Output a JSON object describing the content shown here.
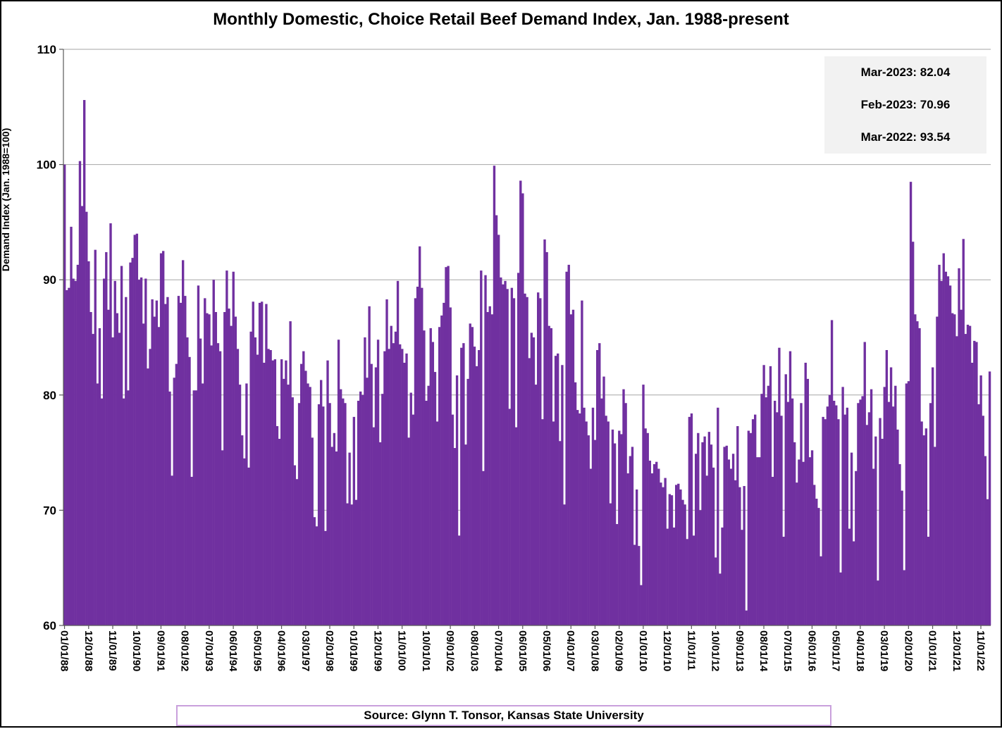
{
  "title": "Monthly Domestic, Choice Retail Beef Demand Index, Jan. 1988-present",
  "y_axis": {
    "label": "Demand Index (Jan. 1988=100)",
    "ticks": [
      110,
      100,
      90,
      80,
      70,
      60
    ],
    "min": 60,
    "max": 110
  },
  "x_axis": {
    "tick_interval_months": 11,
    "tick_labels": [
      "01/01/88",
      "12/01/88",
      "11/01/89",
      "10/01/90",
      "09/01/91",
      "08/01/92",
      "07/01/93",
      "06/01/94",
      "05/01/95",
      "04/01/96",
      "03/01/97",
      "02/01/98",
      "01/01/99",
      "12/01/99",
      "11/01/00",
      "10/01/01",
      "09/01/02",
      "08/01/03",
      "07/01/04",
      "06/01/05",
      "05/01/06",
      "04/01/07",
      "03/01/08",
      "02/01/09",
      "01/01/10",
      "12/01/10",
      "11/01/11",
      "10/01/12",
      "09/01/13",
      "08/01/14",
      "07/01/15",
      "06/01/16",
      "05/01/17",
      "04/01/18",
      "03/01/19",
      "02/01/20",
      "01/01/21",
      "12/01/21",
      "11/01/22"
    ]
  },
  "annotation": {
    "lines": [
      "Mar-2023: 82.04",
      "Feb-2023: 70.96",
      "Mar-2022: 93.54"
    ]
  },
  "source": {
    "text": "Source: Glynn T. Tonsor, Kansas State University"
  },
  "colors": {
    "bar": "#7030A0",
    "gridline": "#A6A6A6",
    "axis": "#595959",
    "annotation_bg": "#F2F2F2",
    "source_border": "#C9A0DC"
  },
  "chart_data": {
    "type": "bar",
    "series_name": "Choice Retail Beef Demand Index",
    "x_start": "1988-01",
    "x_end": "2023-03",
    "x_interval": "month",
    "ylim": [
      60,
      110
    ],
    "grid": true,
    "annotated_points": {
      "Mar-2023": 82.04,
      "Feb-2023": 70.96,
      "Mar-2022": 93.54
    },
    "values": [
      100.0,
      89.1,
      89.3,
      94.6,
      90.1,
      89.9,
      91.3,
      100.3,
      96.4,
      105.6,
      95.9,
      91.6,
      87.2,
      85.3,
      92.6,
      81.0,
      85.8,
      79.7,
      90.1,
      92.4,
      87.4,
      94.9,
      85.0,
      89.9,
      87.1,
      85.4,
      91.2,
      79.7,
      88.5,
      80.4,
      91.5,
      91.9,
      93.9,
      94.0,
      90.0,
      90.2,
      86.2,
      90.1,
      82.3,
      84.0,
      88.3,
      86.8,
      88.2,
      85.9,
      92.3,
      92.5,
      87.9,
      88.5,
      80.3,
      73.0,
      81.5,
      82.7,
      88.6,
      88.0,
      91.7,
      88.6,
      85.0,
      83.3,
      72.9,
      80.4,
      80.4,
      89.5,
      84.9,
      81.0,
      88.4,
      87.1,
      87.0,
      84.3,
      90.0,
      87.2,
      84.5,
      83.8,
      75.2,
      87.2,
      90.8,
      87.5,
      86.0,
      90.7,
      86.8,
      84.0,
      80.9,
      76.5,
      74.5,
      81.0,
      73.7,
      85.5,
      88.1,
      85.0,
      83.5,
      88.0,
      88.1,
      82.8,
      87.9,
      84.0,
      83.9,
      83.0,
      83.1,
      77.3,
      76.2,
      83.1,
      81.4,
      83.0,
      80.9,
      86.4,
      79.8,
      73.9,
      72.7,
      79.3,
      82.7,
      83.8,
      82.1,
      81.0,
      80.7,
      76.3,
      69.4,
      68.6,
      79.2,
      81.3,
      79.0,
      68.2,
      83.0,
      79.3,
      75.5,
      76.7,
      75.1,
      84.8,
      80.5,
      79.7,
      79.3,
      70.6,
      75.0,
      70.5,
      78.1,
      70.9,
      79.5,
      80.3,
      80.0,
      85.0,
      81.5,
      87.7,
      82.7,
      77.2,
      82.4,
      84.8,
      75.9,
      80.1,
      83.8,
      88.3,
      84.0,
      86.0,
      84.5,
      85.5,
      89.9,
      84.4,
      84.0,
      82.8,
      83.6,
      76.3,
      80.2,
      78.3,
      88.4,
      89.4,
      92.9,
      89.3,
      85.6,
      79.5,
      80.8,
      85.8,
      84.6,
      82.0,
      77.7,
      85.9,
      86.9,
      88.0,
      91.1,
      91.2,
      87.6,
      78.3,
      75.4,
      81.7,
      67.8,
      84.1,
      84.5,
      75.7,
      81.4,
      86.2,
      85.9,
      84.2,
      82.5,
      83.9,
      90.8,
      73.4,
      90.4,
      87.2,
      87.7,
      87.0,
      99.9,
      95.6,
      93.9,
      90.2,
      89.6,
      89.9,
      89.2,
      78.8,
      89.3,
      88.4,
      77.2,
      90.6,
      98.6,
      97.5,
      88.8,
      88.5,
      83.2,
      85.4,
      85.0,
      80.9,
      88.9,
      88.4,
      77.9,
      93.5,
      92.4,
      86.0,
      85.8,
      77.7,
      83.4,
      83.6,
      76.0,
      82.6,
      70.5,
      90.7,
      91.3,
      87.0,
      87.4,
      81.1,
      78.7,
      78.4,
      88.2,
      78.9,
      77.7,
      76.5,
      73.6,
      78.9,
      76.1,
      83.9,
      84.5,
      79.7,
      81.6,
      78.2,
      77.7,
      70.6,
      77.0,
      75.8,
      68.8,
      76.9,
      76.6,
      80.5,
      79.3,
      73.2,
      74.7,
      75.5,
      67.0,
      71.8,
      66.9,
      63.5,
      80.9,
      77.1,
      76.7,
      74.3,
      73.2,
      74.0,
      74.2,
      73.6,
      72.4,
      72.0,
      72.8,
      68.4,
      71.4,
      71.3,
      68.5,
      72.2,
      72.3,
      71.8,
      70.9,
      70.5,
      67.5,
      78.1,
      78.4,
      67.8,
      74.9,
      76.7,
      70.0,
      75.9,
      76.4,
      73.0,
      76.8,
      75.7,
      73.7,
      65.9,
      78.9,
      64.5,
      68.5,
      75.5,
      75.6,
      74.4,
      73.6,
      74.9,
      72.6,
      77.3,
      72.0,
      68.3,
      72.1,
      61.3,
      76.9,
      76.7,
      77.9,
      78.3,
      74.6,
      74.6,
      80.1,
      82.6,
      79.8,
      80.8,
      82.5,
      72.9,
      79.5,
      78.5,
      84.1,
      78.2,
      67.7,
      81.8,
      79.4,
      83.8,
      79.7,
      75.9,
      72.4,
      74.4,
      79.3,
      74.2,
      82.8,
      81.4,
      74.6,
      75.2,
      72.2,
      71.0,
      70.2,
      66.0,
      78.1,
      77.9,
      79.0,
      80.0,
      86.5,
      79.5,
      79.1,
      77.9,
      64.6,
      80.7,
      78.3,
      78.9,
      68.4,
      75.0,
      67.3,
      73.4,
      79.3,
      79.6,
      79.9,
      84.6,
      77.4,
      78.5,
      80.5,
      73.6,
      76.4,
      63.9,
      78.0,
      76.2,
      80.7,
      83.9,
      79.4,
      82.4,
      79.0,
      80.8,
      77.0,
      74.0,
      71.7,
      64.8,
      81.0,
      81.2,
      98.5,
      93.3,
      87.0,
      86.4,
      85.8,
      77.7,
      76.5,
      77.1,
      67.7,
      79.3,
      82.4,
      75.5,
      86.8,
      91.3,
      89.9,
      92.3,
      90.7,
      90.3,
      89.5,
      87.1,
      87.0,
      85.1,
      91.0,
      87.4,
      93.54,
      85.3,
      86.1,
      86.0,
      82.8,
      84.7,
      84.6,
      79.2,
      81.7,
      78.2,
      74.7,
      70.96,
      82.04
    ]
  }
}
